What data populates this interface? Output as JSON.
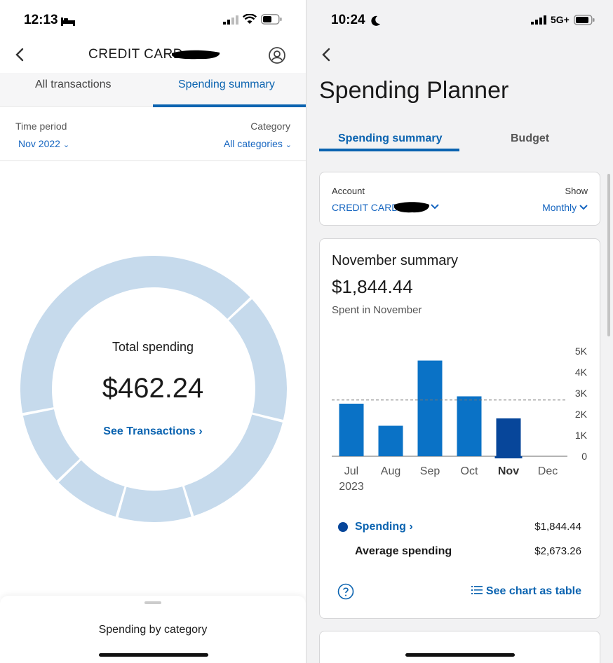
{
  "left": {
    "status": {
      "time": "12:13"
    },
    "header": {
      "title": "CREDIT CARD"
    },
    "tabs": [
      {
        "label": "All transactions",
        "active": false
      },
      {
        "label": "Spending summary",
        "active": true
      }
    ],
    "filters": {
      "time_period_label": "Time period",
      "time_period_value": "Nov 2022",
      "category_label": "Category",
      "category_value": "All categories"
    },
    "donut": {
      "title": "Total spending",
      "amount": "$462.24",
      "link": "See Transactions",
      "color": "#c6daec"
    },
    "sheet": {
      "title": "Spending by category"
    }
  },
  "right": {
    "status": {
      "time": "10:24",
      "network": "5G+"
    },
    "page_title": "Spending Planner",
    "tabs": [
      {
        "label": "Spending summary",
        "active": true
      },
      {
        "label": "Budget",
        "active": false
      }
    ],
    "account": {
      "account_label": "Account",
      "account_value": "CREDIT CARD",
      "show_label": "Show",
      "show_value": "Monthly"
    },
    "summary": {
      "title": "November summary",
      "amount": "$1,844.44",
      "subtitle": "Spent in November"
    },
    "chart_data": {
      "type": "bar",
      "categories": [
        "Jul",
        "Aug",
        "Sep",
        "Oct",
        "Nov",
        "Dec"
      ],
      "category_sublabels": [
        "2023",
        "",
        "",
        "",
        "",
        ""
      ],
      "highlight_index": 4,
      "values": [
        2500,
        1450,
        4550,
        2850,
        1800,
        0
      ],
      "average": 2673.26,
      "yticks": [
        0,
        1000,
        2000,
        3000,
        4000,
        5000
      ],
      "ytick_labels": [
        "0",
        "1K",
        "2K",
        "3K",
        "4K",
        "5K"
      ],
      "ylim": [
        0,
        5000
      ],
      "bar_color": "#0a72c6",
      "highlight_color": "#07469a"
    },
    "legend": {
      "spending_label": "Spending",
      "spending_value": "$1,844.44",
      "average_label": "Average spending",
      "average_value": "$2,673.26"
    },
    "footer": {
      "table_link": "See chart as table"
    }
  }
}
